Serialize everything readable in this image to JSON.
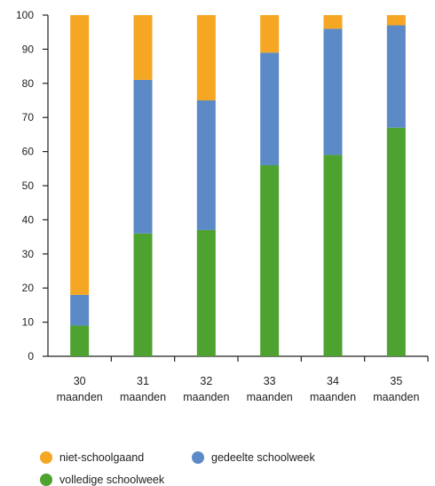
{
  "chart_data": {
    "type": "bar",
    "stacked": true,
    "categories": [
      [
        "30",
        "maanden"
      ],
      [
        "31",
        "maanden"
      ],
      [
        "32",
        "maanden"
      ],
      [
        "33",
        "maanden"
      ],
      [
        "34",
        "maanden"
      ],
      [
        "35",
        "maanden"
      ]
    ],
    "series": [
      {
        "name": "volledige schoolweek",
        "key": "volledige",
        "color": "#4ea22f",
        "values": [
          9,
          36,
          37,
          56,
          59,
          67
        ]
      },
      {
        "name": "gedeelte schoolweek",
        "key": "gedeelte",
        "color": "#5b8ac6",
        "values": [
          9,
          45,
          38,
          33,
          37,
          30
        ]
      },
      {
        "name": "niet-schoolgaand",
        "key": "niet",
        "color": "#f5a623",
        "values": [
          82,
          19,
          25,
          11,
          4,
          3
        ]
      }
    ],
    "ylim": [
      0,
      100
    ],
    "yticks": [
      0,
      10,
      20,
      30,
      40,
      50,
      60,
      70,
      80,
      90,
      100
    ],
    "title": "",
    "xlabel": "",
    "ylabel": "",
    "grid": false,
    "legend_placement": "bottom-left"
  }
}
